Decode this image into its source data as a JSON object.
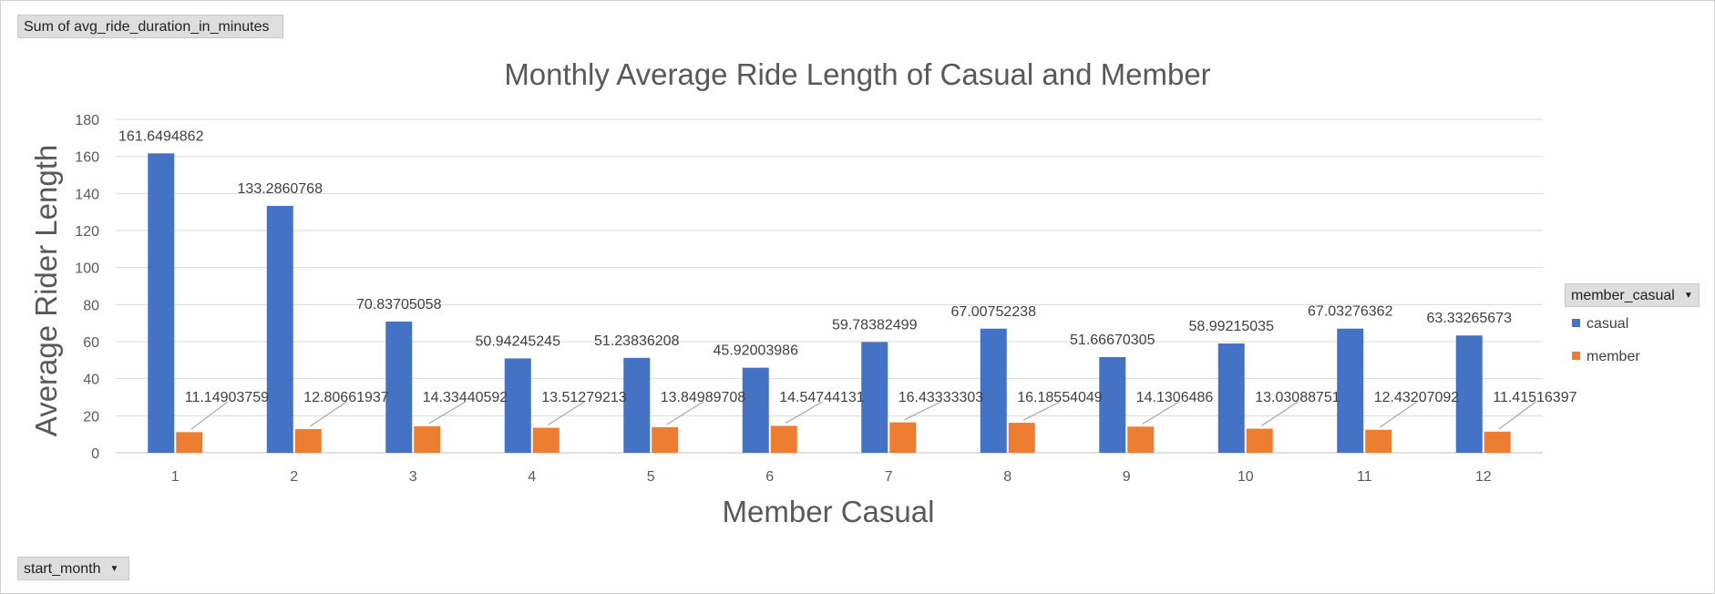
{
  "pivot_fields": {
    "values_field": "Sum of avg_ride_duration_in_minutes",
    "row_field": "start_month",
    "legend_field": "member_casual"
  },
  "colors": {
    "casual": "#4472C4",
    "member": "#ED7D31",
    "grid": "#d9d9d9",
    "axis_text": "#595959",
    "title_text": "#595959"
  },
  "icons": {
    "dropdown": "chevron-down-icon"
  },
  "chart_data": {
    "type": "bar",
    "title": "Monthly Average Ride Length of Casual and Member",
    "xlabel": "Member Casual",
    "ylabel": "Average Rider Length",
    "ylim": [
      0,
      180
    ],
    "yticks": [
      0,
      20,
      40,
      60,
      80,
      100,
      120,
      140,
      160,
      180
    ],
    "categories": [
      "1",
      "2",
      "3",
      "4",
      "5",
      "6",
      "7",
      "8",
      "9",
      "10",
      "11",
      "12"
    ],
    "grid": true,
    "legend_position": "right",
    "series": [
      {
        "name": "casual",
        "values": [
          161.6494862,
          133.2860768,
          70.83705058,
          50.94245245,
          51.23836208,
          45.92003986,
          59.78382499,
          67.00752238,
          51.66670305,
          58.99215035,
          67.03276362,
          63.33265673
        ],
        "labels": [
          "161.6494862",
          "133.2860768",
          "70.83705058",
          "50.94245245",
          "51.23836208",
          "45.92003986",
          "59.78382499",
          "67.00752238",
          "51.66670305",
          "58.99215035",
          "67.03276362",
          "63.33265673"
        ]
      },
      {
        "name": "member",
        "values": [
          11.14903759,
          12.80661937,
          14.33440592,
          13.51279213,
          13.84989708,
          14.54744131,
          16.43333303,
          16.18554049,
          14.1306486,
          13.03088751,
          12.43207092,
          11.41516397
        ],
        "labels": [
          "11.14903759",
          "12.80661937",
          "14.33440592",
          "13.51279213",
          "13.84989708",
          "14.54744131",
          "16.43333303",
          "16.18554049",
          "14.1306486",
          "13.03088751",
          "12.43207092",
          "11.41516397"
        ]
      }
    ]
  }
}
